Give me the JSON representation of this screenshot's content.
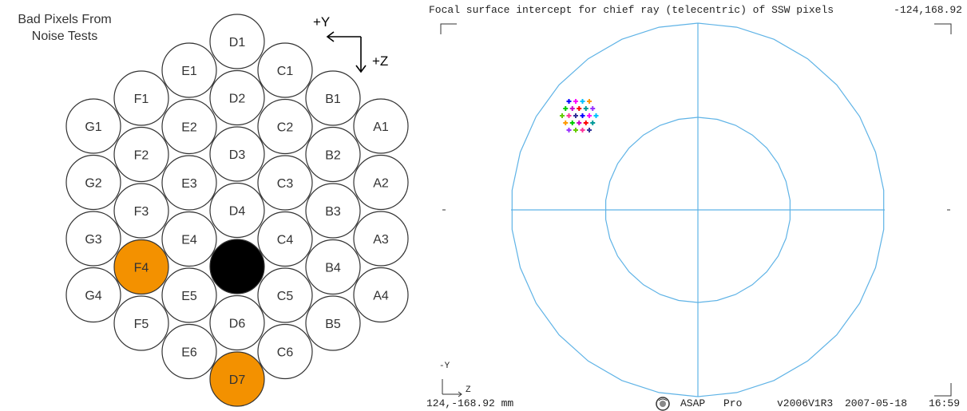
{
  "left_panel": {
    "title_line1": "Bad Pixels From",
    "title_line2": "Noise Tests",
    "axis_y_label": "+Y",
    "axis_z_label": "+Z",
    "colors": {
      "bad_pixel": "#f39100",
      "dead_pixel": "#000000",
      "normal_pixel": "#ffffff",
      "outline": "#333333"
    },
    "pixels": [
      {
        "id": "D1",
        "label": "D1",
        "status": "ok"
      },
      {
        "id": "E1",
        "label": "E1",
        "status": "ok"
      },
      {
        "id": "C1",
        "label": "C1",
        "status": "ok"
      },
      {
        "id": "F1",
        "label": "F1",
        "status": "ok"
      },
      {
        "id": "D2",
        "label": "D2",
        "status": "ok"
      },
      {
        "id": "B1",
        "label": "B1",
        "status": "ok"
      },
      {
        "id": "G1",
        "label": "G1",
        "status": "ok"
      },
      {
        "id": "E2",
        "label": "E2",
        "status": "ok"
      },
      {
        "id": "C2",
        "label": "C2",
        "status": "ok"
      },
      {
        "id": "A1",
        "label": "A1",
        "status": "ok"
      },
      {
        "id": "F2",
        "label": "F2",
        "status": "ok"
      },
      {
        "id": "D3",
        "label": "D3",
        "status": "ok"
      },
      {
        "id": "B2",
        "label": "B2",
        "status": "ok"
      },
      {
        "id": "G2",
        "label": "G2",
        "status": "ok"
      },
      {
        "id": "E3",
        "label": "E3",
        "status": "ok"
      },
      {
        "id": "C3",
        "label": "C3",
        "status": "ok"
      },
      {
        "id": "A2",
        "label": "A2",
        "status": "ok"
      },
      {
        "id": "F3",
        "label": "F3",
        "status": "ok"
      },
      {
        "id": "D4",
        "label": "D4",
        "status": "ok"
      },
      {
        "id": "B3",
        "label": "B3",
        "status": "ok"
      },
      {
        "id": "G3",
        "label": "G3",
        "status": "ok"
      },
      {
        "id": "E4",
        "label": "E4",
        "status": "ok"
      },
      {
        "id": "C4",
        "label": "C4",
        "status": "ok"
      },
      {
        "id": "A3",
        "label": "A3",
        "status": "ok"
      },
      {
        "id": "F4",
        "label": "F4",
        "status": "bad"
      },
      {
        "id": "D5",
        "label": "",
        "status": "dead"
      },
      {
        "id": "B4",
        "label": "B4",
        "status": "ok"
      },
      {
        "id": "G4",
        "label": "G4",
        "status": "ok"
      },
      {
        "id": "E5",
        "label": "E5",
        "status": "ok"
      },
      {
        "id": "C5",
        "label": "C5",
        "status": "ok"
      },
      {
        "id": "A4",
        "label": "A4",
        "status": "ok"
      },
      {
        "id": "F5",
        "label": "F5",
        "status": "ok"
      },
      {
        "id": "D6",
        "label": "D6",
        "status": "ok"
      },
      {
        "id": "B5",
        "label": "B5",
        "status": "ok"
      },
      {
        "id": "E6",
        "label": "E6",
        "status": "ok"
      },
      {
        "id": "C6",
        "label": "C6",
        "status": "ok"
      },
      {
        "id": "D7",
        "label": "D7",
        "status": "bad"
      }
    ]
  },
  "right_panel": {
    "title": "Focal surface intercept for chief ray (telecentric) of SSW pixels",
    "top_right_coord": "-124,168.92",
    "bottom_left_coord": "124,-168.92 mm",
    "axis_y_label": "-Y",
    "axis_z_label": "Z",
    "software": "ASAP",
    "edition": "Pro",
    "version": "v2006V1R3",
    "date": "2007-05-18",
    "time": "16:59",
    "colors": {
      "circle_line": "#5fb3e6",
      "text": "#222222"
    },
    "marker_colors": [
      "#0000ff",
      "#ff00ff",
      "#00c0ff",
      "#ff9900",
      "#00cc00",
      "#cc00cc",
      "#ff0000",
      "#009999",
      "#9933ff",
      "#66cc00",
      "#ff3399",
      "#333399"
    ]
  }
}
